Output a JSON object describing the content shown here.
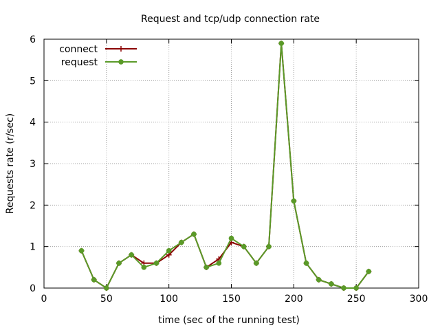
{
  "chart_data": {
    "type": "line",
    "title": "Request and tcp/udp connection rate",
    "xlabel": "time (sec of the running test)",
    "ylabel": "Requests rate (r/sec)",
    "xlim": [
      0,
      300
    ],
    "ylim": [
      0,
      6
    ],
    "xticks": [
      "0",
      "50",
      "100",
      "150",
      "200",
      "250",
      "300"
    ],
    "yticks": [
      "0",
      "1",
      "2",
      "3",
      "4",
      "5",
      "6"
    ],
    "grid": true,
    "legend_position": "top-left",
    "series": [
      {
        "name": "connect",
        "color": "#8b0000",
        "marker": "plus",
        "x": [
          30,
          40,
          50,
          60,
          70,
          80,
          90,
          100,
          110,
          120,
          130,
          140,
          150,
          160,
          170,
          180,
          190,
          200,
          210,
          220,
          230,
          240,
          250,
          260
        ],
        "y": [
          0.9,
          0.2,
          0.0,
          0.6,
          0.8,
          0.6,
          0.6,
          0.8,
          1.1,
          1.3,
          0.5,
          0.7,
          1.1,
          1.0,
          0.6,
          1.0,
          5.9,
          2.1,
          0.6,
          0.2,
          0.1,
          0.0,
          0.0,
          0.4
        ]
      },
      {
        "name": "request",
        "color": "#5a9a28",
        "marker": "circle",
        "x": [
          30,
          40,
          50,
          60,
          70,
          80,
          90,
          100,
          110,
          120,
          130,
          140,
          150,
          160,
          170,
          180,
          190,
          200,
          210,
          220,
          230,
          240,
          250,
          260
        ],
        "y": [
          0.9,
          0.2,
          0.0,
          0.6,
          0.8,
          0.5,
          0.6,
          0.9,
          1.1,
          1.3,
          0.5,
          0.6,
          1.2,
          1.0,
          0.6,
          1.0,
          5.9,
          2.1,
          0.6,
          0.2,
          0.1,
          0.0,
          0.0,
          0.4
        ]
      }
    ]
  }
}
